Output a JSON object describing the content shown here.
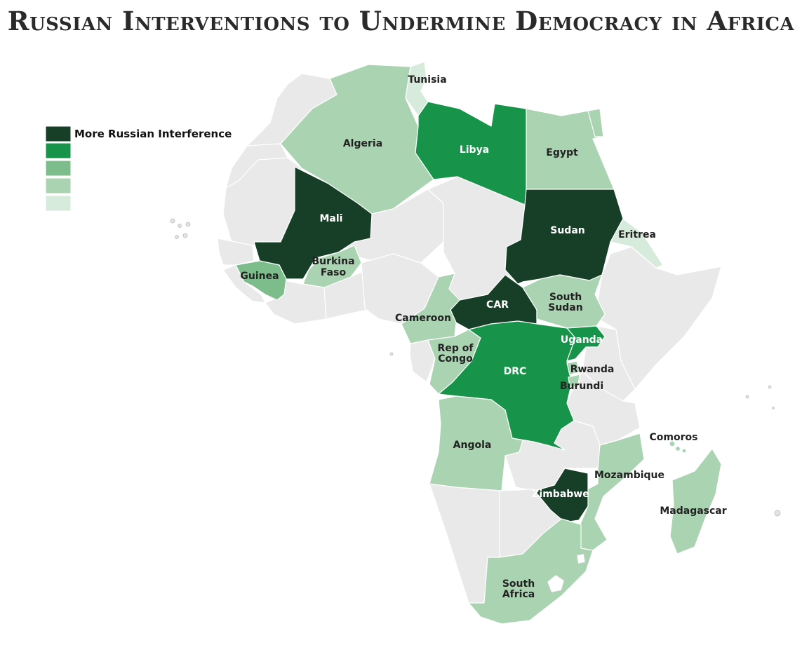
{
  "title": "Russian Interventions to Undermine Democracy in Africa",
  "colors": {
    "level5": "#173f27",
    "level4": "#17944a",
    "level3": "#7dbd8b",
    "level2": "#a9d3b1",
    "level1": "#d7ebdc",
    "none": "#e9e9e9",
    "label_dark": "#222222",
    "label_light": "#ffffff"
  },
  "legend": {
    "top_label": "More Russian Interference",
    "levels": [
      "level5",
      "level4",
      "level3",
      "level2",
      "level1"
    ]
  },
  "countries": {
    "tunisia": {
      "label": "Tunisia",
      "level": "level1"
    },
    "algeria": {
      "label": "Algeria",
      "level": "level2"
    },
    "libya": {
      "label": "Libya",
      "level": "level4"
    },
    "egypt": {
      "label": "Egypt",
      "level": "level2"
    },
    "mali": {
      "label": "Mali",
      "level": "level5"
    },
    "sudan": {
      "label": "Sudan",
      "level": "level5"
    },
    "eritrea": {
      "label": "Eritrea",
      "level": "level1"
    },
    "guinea": {
      "label": "Guinea",
      "level": "level3"
    },
    "burkina_faso": {
      "label_line1": "Burkina",
      "label_line2": "Faso",
      "level": "level2"
    },
    "car": {
      "label": "CAR",
      "level": "level5"
    },
    "cameroon": {
      "label": "Cameroon",
      "level": "level2"
    },
    "south_sudan": {
      "label_line1": "South",
      "label_line2": "Sudan",
      "level": "level2"
    },
    "uganda": {
      "label": "Uganda",
      "level": "level4"
    },
    "rep_congo": {
      "label_line1": "Rep of",
      "label_line2": "Congo",
      "level": "level2"
    },
    "drc": {
      "label": "DRC",
      "level": "level4"
    },
    "rwanda": {
      "label": "Rwanda",
      "level": "level2"
    },
    "burundi": {
      "label": "Burundi",
      "level": "level2"
    },
    "angola": {
      "label": "Angola",
      "level": "level2"
    },
    "comoros": {
      "label": "Comoros",
      "level": "level2"
    },
    "mozambique": {
      "label": "Mozambique",
      "level": "level2"
    },
    "zimbabwe": {
      "label": "Zimbabwe",
      "level": "level5"
    },
    "madagascar": {
      "label": "Madagascar",
      "level": "level2"
    },
    "south_africa": {
      "label_line1": "South",
      "label_line2": "Africa",
      "level": "level2"
    }
  }
}
